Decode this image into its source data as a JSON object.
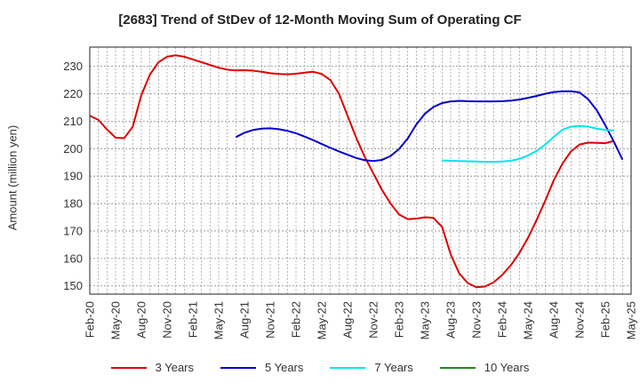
{
  "chart_data": {
    "type": "line",
    "title": "[2683]  Trend of StDev of 12-Month Moving Sum of Operating CF",
    "ylabel": "Amount (million yen)",
    "xlabel": "",
    "ylim": [
      147,
      237
    ],
    "yticks": [
      150,
      160,
      170,
      180,
      190,
      200,
      210,
      220,
      230
    ],
    "xticks": [
      "Feb-20",
      "May-20",
      "Aug-20",
      "Nov-20",
      "Feb-21",
      "May-21",
      "Aug-21",
      "Nov-21",
      "Feb-22",
      "May-22",
      "Aug-22",
      "Nov-22",
      "Feb-23",
      "May-23",
      "Aug-23",
      "Nov-23",
      "Feb-24",
      "May-24",
      "Aug-24",
      "Nov-24",
      "Feb-25",
      "May-25"
    ],
    "grid": true,
    "legend_position": "bottom",
    "series": [
      {
        "name": "3 Years",
        "color": "#e00000",
        "start": "Feb-20",
        "values": [
          212,
          210.5,
          207,
          204,
          203.8,
          208,
          219.5,
          227,
          231.5,
          233.5,
          234,
          233.5,
          232.5,
          231.5,
          230.5,
          229.5,
          228.8,
          228.5,
          228.6,
          228.4,
          228,
          227.5,
          227.2,
          227.1,
          227.3,
          227.7,
          228,
          227.2,
          225,
          220,
          212,
          204,
          197,
          191,
          185,
          180,
          176,
          174.3,
          174.5,
          175,
          174.8,
          171.5,
          161.5,
          154.5,
          151,
          149.5,
          149.8,
          151.3,
          154,
          157.5,
          162,
          167.5,
          174,
          181,
          188.5,
          194.5,
          199,
          201.5,
          202.2,
          202.1,
          202,
          202.8
        ]
      },
      {
        "name": "5 Years",
        "color": "#0000cc",
        "start": "Jul-21",
        "values": [
          204.2,
          205.8,
          206.8,
          207.3,
          207.4,
          207.1,
          206.5,
          205.6,
          204.4,
          203.1,
          201.7,
          200.3,
          199,
          197.8,
          196.6,
          195.8,
          195.5,
          195.9,
          197.3,
          199.9,
          203.7,
          208.8,
          212.7,
          215.2,
          216.6,
          217.2,
          217.4,
          217.3,
          217.2,
          217.2,
          217.2,
          217.3,
          217.5,
          217.9,
          218.5,
          219.2,
          220,
          220.6,
          220.9,
          220.9,
          220.5,
          218,
          214,
          208.5,
          202.5,
          196
        ]
      },
      {
        "name": "7 Years",
        "color": "#00e5ee",
        "start": "Jul-23",
        "values": [
          195.7,
          195.6,
          195.5,
          195.4,
          195.3,
          195.2,
          195.2,
          195.3,
          195.6,
          196.3,
          197.5,
          199.2,
          201.5,
          204.3,
          206.9,
          208,
          208.3,
          208,
          207.3,
          206.8,
          206.6
        ]
      },
      {
        "name": "10 Years",
        "color": "#1a8a1a",
        "start": "Feb-20",
        "values": []
      }
    ]
  }
}
